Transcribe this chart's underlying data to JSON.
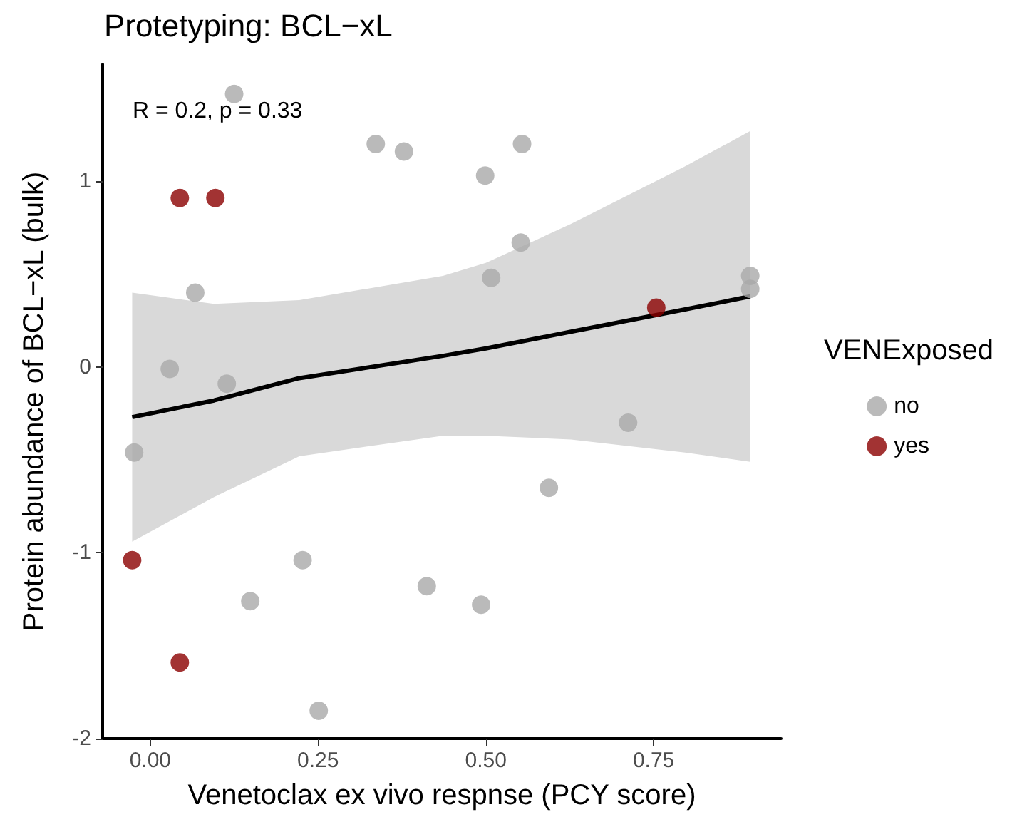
{
  "chart_data": {
    "type": "scatter",
    "title": "Protetyping: BCL−xL",
    "xlabel": "Venetoclax ex vivo respnse (PCY score)",
    "ylabel": "Protein abundance of BCL−xL (bulk)",
    "legend_title": "VENExposed",
    "annotations": [
      "R = 0.2, p = 0.33"
    ],
    "xlim": [
      -0.071,
      0.94
    ],
    "ylim": [
      -2.0,
      1.63
    ],
    "xticks": [
      {
        "value": 0,
        "label": "0.00"
      },
      {
        "value": 0.25,
        "label": "0.25"
      },
      {
        "value": 0.5,
        "label": "0.50"
      },
      {
        "value": 0.75,
        "label": "0.75"
      }
    ],
    "yticks": [
      -2,
      -1,
      0,
      1
    ],
    "grid": false,
    "legend": "right",
    "marker": "circle",
    "series": [
      {
        "name": "no",
        "color": "#a9a9a9",
        "x": [
          0.125,
          0.336,
          0.378,
          0.554,
          0.499,
          0.552,
          0.508,
          0.894,
          0.894,
          0.067,
          0.029,
          0.114,
          -0.024,
          0.712,
          0.594,
          0.227,
          0.149,
          0.412,
          0.493,
          0.251
        ],
        "values": [
          1.47,
          1.2,
          1.16,
          1.2,
          1.03,
          0.67,
          0.48,
          0.49,
          0.42,
          0.4,
          -0.01,
          -0.09,
          -0.46,
          -0.3,
          -0.65,
          -1.04,
          -1.26,
          -1.18,
          -1.28,
          -1.85
        ]
      },
      {
        "name": "yes",
        "color": "#8b0000",
        "x": [
          0.044,
          0.097,
          -0.027,
          0.044,
          0.754
        ],
        "values": [
          0.91,
          0.91,
          -1.04,
          -1.59,
          0.32
        ]
      },
      {
        "type": "line",
        "color": "#000000",
        "line_style": "solid",
        "marker": "none",
        "x": [
          -0.027,
          0.095,
          0.222,
          0.436,
          0.5,
          0.627,
          0.797,
          0.894
        ],
        "values": [
          -0.27,
          -0.18,
          -0.06,
          0.06,
          0.1,
          0.19,
          0.31,
          0.38
        ],
        "lower": [
          -0.94,
          -0.7,
          -0.48,
          -0.37,
          -0.37,
          -0.39,
          -0.46,
          -0.51
        ],
        "upper": [
          0.4,
          0.34,
          0.36,
          0.49,
          0.56,
          0.77,
          1.08,
          1.27
        ]
      }
    ]
  }
}
